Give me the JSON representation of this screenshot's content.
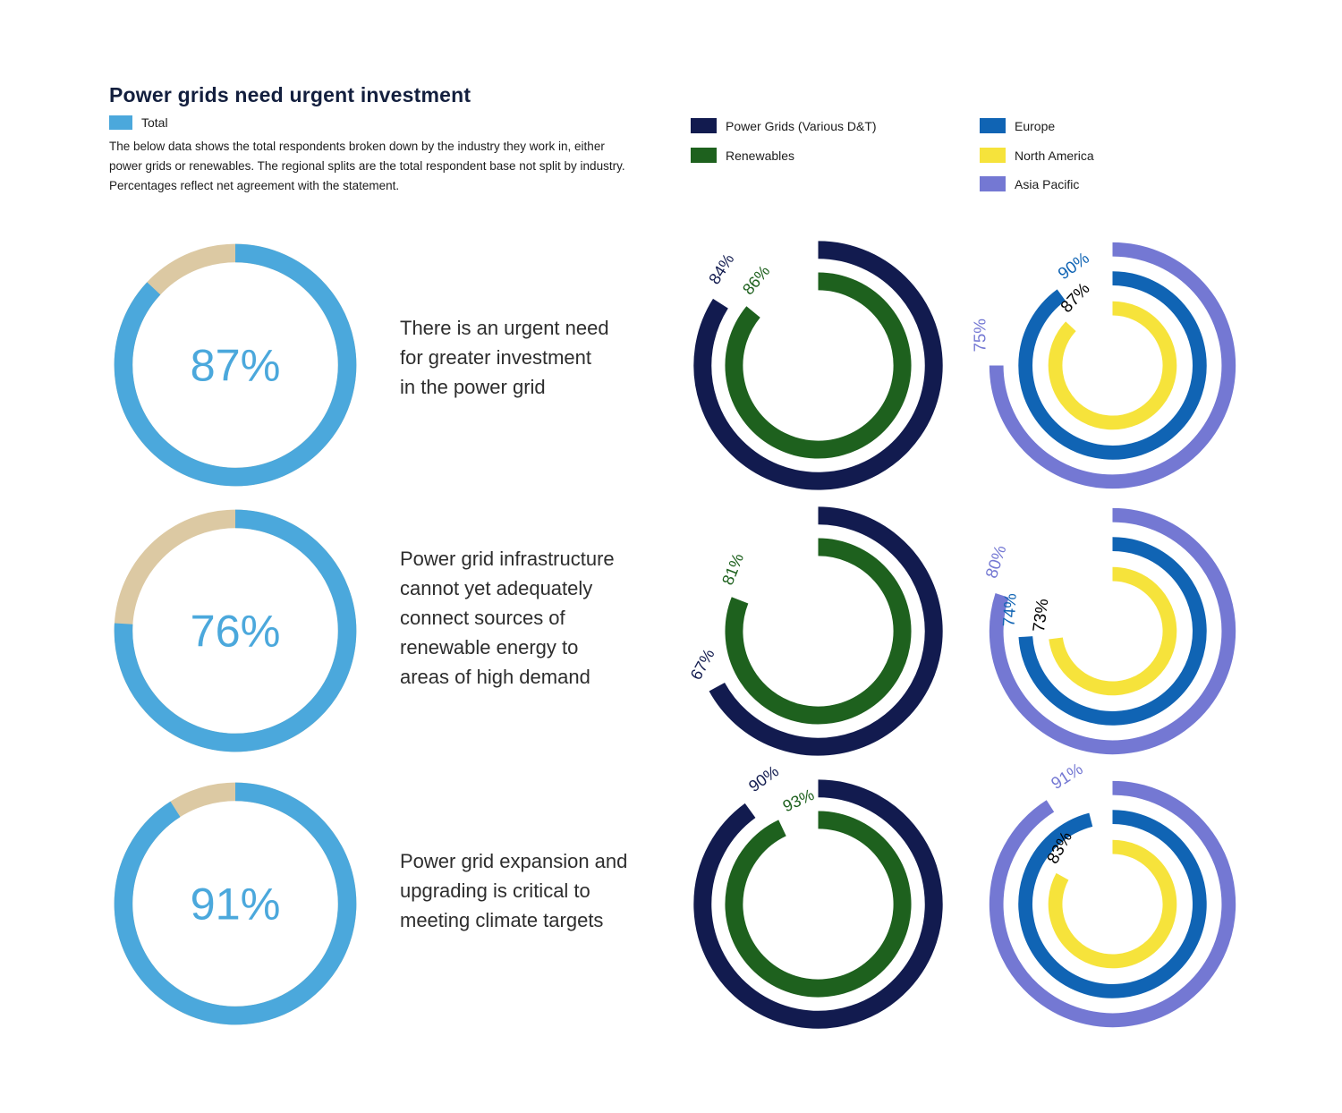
{
  "title": "Power grids need urgent investment",
  "description": "The below data shows the total respondents broken down by the industry they work in, either power grids or renewables. The regional splits are the total respondent base not split by industry. Percentages reflect net agreement with the statement.",
  "colors": {
    "total": "#4BA8DC",
    "total_remainder": "#DCC9A3",
    "power_grids": "#121B4F",
    "renewables": "#1E611E",
    "europe": "#1064B4",
    "north_america": "#F6E33B",
    "asia_pacific": "#7478D3",
    "north_america_label": "#000000",
    "title_text": "#131F3E",
    "body_text": "#1C1C1C",
    "statement_text": "#2D2D2D"
  },
  "legend": {
    "total_label": "Total",
    "industry": [
      {
        "key": "power_grids",
        "label": "Power Grids (Various D&T)"
      },
      {
        "key": "renewables",
        "label": "Renewables"
      }
    ],
    "region": [
      {
        "key": "europe",
        "label": "Europe"
      },
      {
        "key": "north_america",
        "label": "North America"
      },
      {
        "key": "asia_pacific",
        "label": "Asia Pacific"
      }
    ]
  },
  "chart_data": {
    "type": "donut",
    "unit": "%",
    "note": "Each row: Total donut (blue on tan remainder), industry rings (outer=Power Grids, inner=Renewables), region rings (outer=Asia Pacific, middle=Europe, inner=North America). Arcs start at 12 o'clock, clockwise. Row 3 Europe arc (~96%) is drawn but unlabeled in the image.",
    "rows": [
      {
        "statement": "There is an urgent need for greater investment in the power grid",
        "statement_lines": [
          "There is an urgent need",
          "for greater investment",
          "in the power grid"
        ],
        "total": 87,
        "power_grids": 84,
        "renewables": 86,
        "europe": 90,
        "north_america": 87,
        "asia_pacific": 75,
        "labels_hidden": []
      },
      {
        "statement": "Power grid infrastructure cannot yet adequately connect sources of renewable energy to areas of high demand",
        "statement_lines": [
          "Power grid infrastructure",
          "cannot yet adequately",
          "connect sources of",
          "renewable energy to",
          "areas of high demand"
        ],
        "total": 76,
        "power_grids": 67,
        "renewables": 81,
        "europe": 74,
        "north_america": 73,
        "asia_pacific": 80,
        "labels_hidden": []
      },
      {
        "statement": "Power grid expansion and upgrading is critical to meeting climate targets",
        "statement_lines": [
          "Power grid expansion and",
          "upgrading is critical to",
          "meeting climate targets"
        ],
        "total": 91,
        "power_grids": 90,
        "renewables": 93,
        "europe": 96,
        "north_america": 83,
        "asia_pacific": 91,
        "labels_hidden": [
          "europe"
        ]
      }
    ]
  }
}
